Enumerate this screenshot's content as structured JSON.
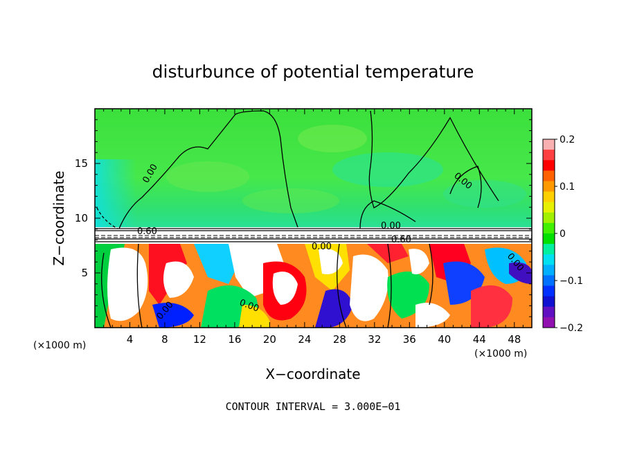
{
  "chart_data": {
    "type": "heatmap",
    "title": "disturbunce of potential temperature",
    "xlabel": "X−coordinate",
    "ylabel": "Z−coordinate",
    "x_unit": "(×1000 m)",
    "y_unit": "(×1000 m)",
    "xlim": [
      0,
      50
    ],
    "ylim": [
      0,
      20
    ],
    "x_ticks": [
      4,
      8,
      12,
      16,
      20,
      24,
      28,
      32,
      36,
      40,
      44,
      48
    ],
    "y_ticks": [
      5,
      10,
      15
    ],
    "colorbar": {
      "min": -0.2,
      "max": 0.2,
      "ticks": [
        0.2,
        0.1,
        0,
        -0.1,
        -0.2
      ],
      "tick_labels": [
        "0.2",
        "0.1",
        "0",
        "−0.1",
        "−0.2"
      ],
      "colors": [
        "#f9b0b0",
        "#ff4040",
        "#ff0000",
        "#ff6000",
        "#ff9900",
        "#ffd000",
        "#e6f000",
        "#a0f000",
        "#40f000",
        "#00e000",
        "#00f0a0",
        "#00e0f0",
        "#00b0ff",
        "#0070ff",
        "#0030ff",
        "#1010d0",
        "#6010c0",
        "#9010b0"
      ]
    },
    "contour_labels": [
      "0.00",
      "0.60",
      "0.00",
      "0.00",
      "0.60",
      "0.00",
      "0.00",
      "0.00",
      "0.00"
    ],
    "footer": "CONTOUR INTERVAL = 3.000E−01"
  }
}
